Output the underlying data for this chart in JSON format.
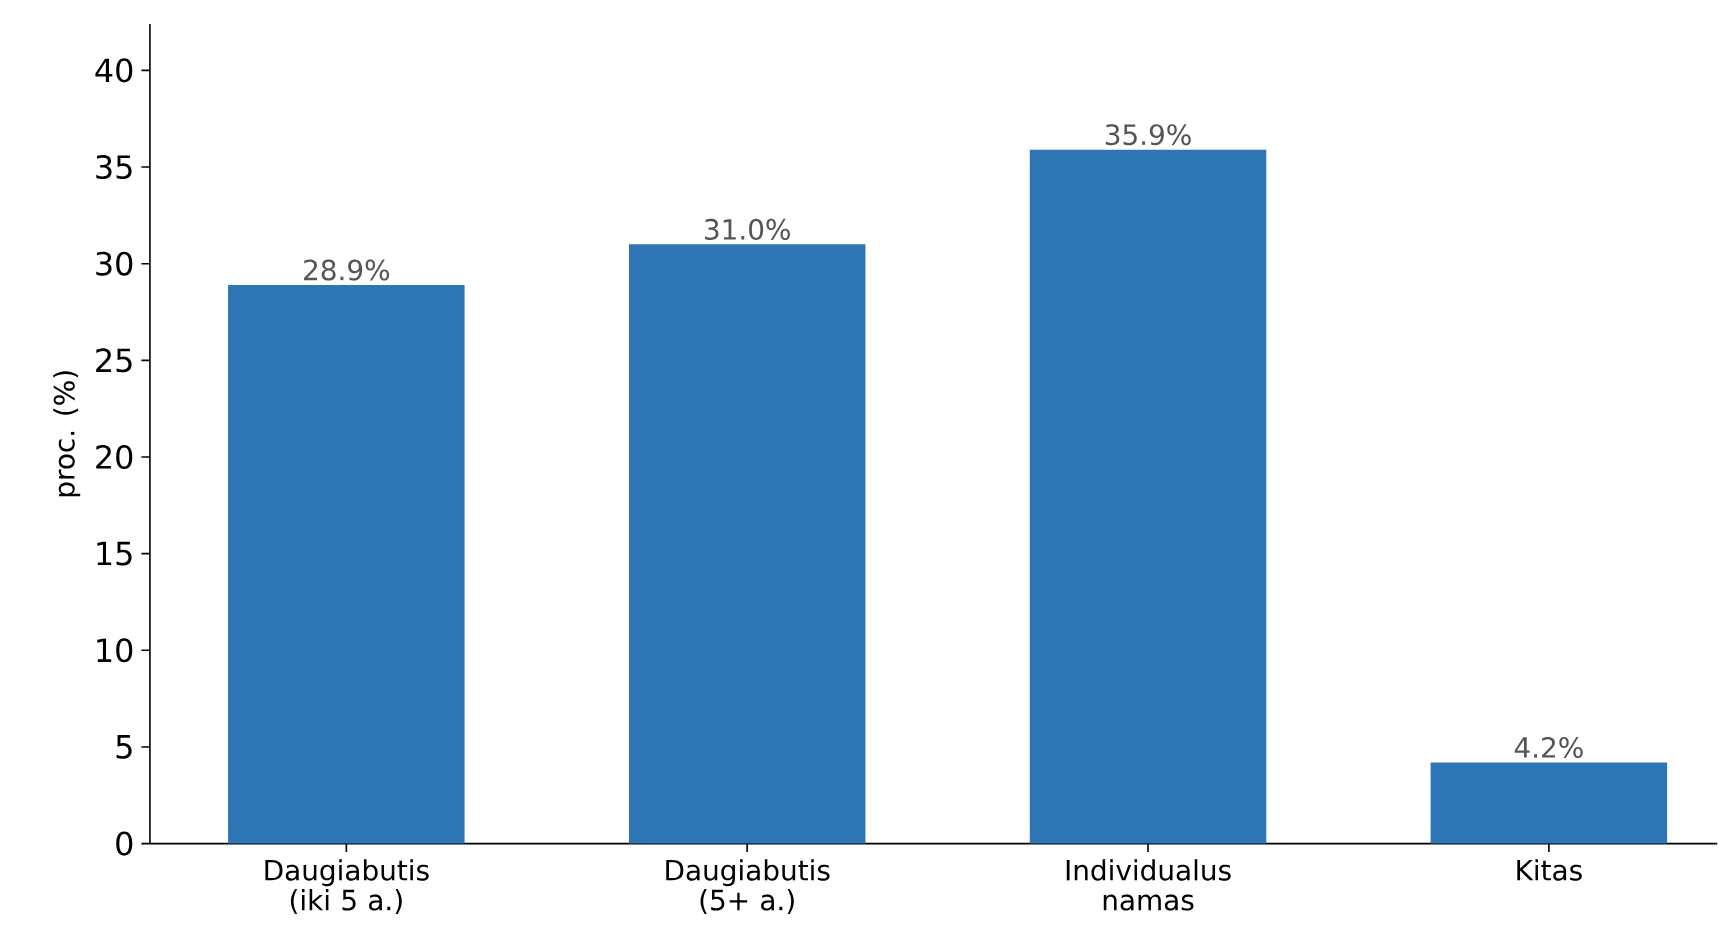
{
  "chart_data": {
    "type": "bar",
    "ylabel": "proc. (%)",
    "categories": [
      "Daugiabutis (iki 5 a.)",
      "Daugiabutis (5+ a.)",
      "Individualus namas",
      "Kitas"
    ],
    "values": [
      28.9,
      31.0,
      35.9,
      4.2
    ],
    "value_labels": [
      "28.9%",
      "31.0%",
      "35.9%",
      "4.2%"
    ],
    "color": "#2e75b6",
    "ylim": [
      0,
      42.4
    ],
    "yticks": [
      0,
      5,
      10,
      15,
      20,
      25,
      30,
      35,
      40
    ]
  }
}
